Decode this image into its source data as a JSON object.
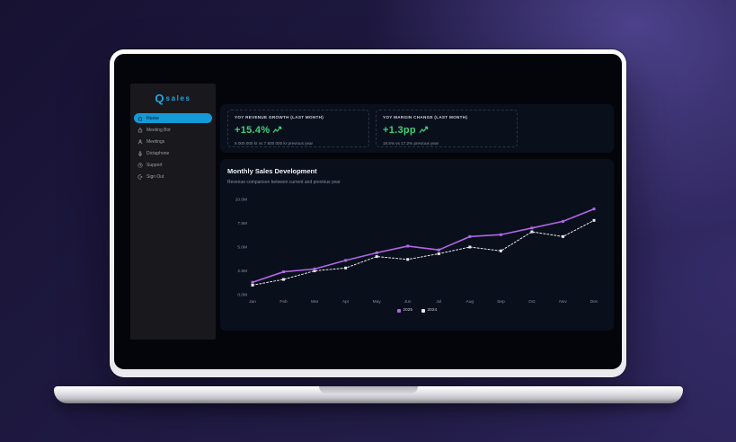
{
  "colors": {
    "accent_blue": "#149ad6",
    "logo_blue": "#1ba6e6",
    "positive_green": "#3ed276",
    "line_2025": "#b066e6",
    "line_2024": "#e8e8ee",
    "panel_bg": "#0a0f1c",
    "sidebar_bg": "#19191d"
  },
  "sidebar": {
    "logo": {
      "q": "Q",
      "text": "sales"
    },
    "items": [
      {
        "label": "Home",
        "icon": "home-icon",
        "active": true
      },
      {
        "label": "Meeting Bot",
        "icon": "meeting-bot-icon",
        "active": false
      },
      {
        "label": "Meetings",
        "icon": "meetings-icon",
        "active": false
      },
      {
        "label": "Dictaphone",
        "icon": "dictaphone-icon",
        "active": false
      },
      {
        "label": "Support",
        "icon": "support-icon",
        "active": false
      },
      {
        "label": "Sign Out",
        "icon": "sign-out-icon",
        "active": false
      }
    ]
  },
  "kpis": [
    {
      "title": "YOY REVENUE GROWTH (LAST MONTH)",
      "value": "+15.4%",
      "subtext": "9 000 000 kr vs 7 800 000 kr previous year",
      "trend_icon": "trend-up-icon"
    },
    {
      "title": "YOY MARGIN CHANGE (LAST MONTH)",
      "value": "+1.3pp",
      "subtext": "18.5% vs 17.2% previous year",
      "trend_icon": "trend-up-icon"
    }
  ],
  "chart": {
    "title": "Monthly Sales Development",
    "subtitle": "Revenue comparison between current and previous year"
  },
  "chart_data": {
    "type": "line",
    "title": "Monthly Sales Development",
    "subtitle": "Revenue comparison between current and previous year",
    "categories": [
      "Jan",
      "Feb",
      "Mar",
      "Apr",
      "May",
      "Jun",
      "Jul",
      "Aug",
      "Sep",
      "Oct",
      "Nov",
      "Dec"
    ],
    "series": [
      {
        "name": "2025",
        "color": "#b066e6",
        "style": "solid",
        "values": [
          1.3,
          2.4,
          2.7,
          3.6,
          4.4,
          5.1,
          4.7,
          6.1,
          6.3,
          7.0,
          7.7,
          9.0
        ]
      },
      {
        "name": "2024",
        "color": "#e8e8ee",
        "style": "dashed",
        "values": [
          1.0,
          1.6,
          2.5,
          2.8,
          4.0,
          3.7,
          4.3,
          5.0,
          4.6,
          6.6,
          6.1,
          7.8
        ]
      }
    ],
    "unit": "M",
    "ylim": [
      0,
      10
    ],
    "yticks": [
      "0.0M",
      "2.5M",
      "5.0M",
      "7.5M",
      "10.0M"
    ],
    "xlabel": "",
    "ylabel": "",
    "grid": false,
    "legend_position": "bottom"
  }
}
